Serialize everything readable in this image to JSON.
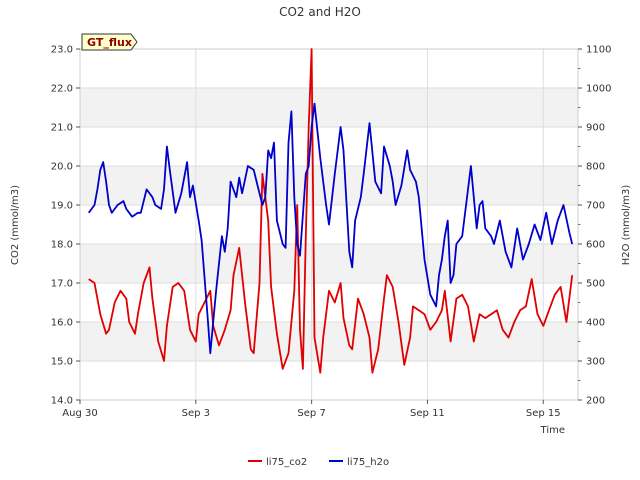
{
  "chart_data": {
    "type": "line",
    "title": "CO2 and H2O",
    "badge": "GT_flux",
    "xlabel": "Time",
    "ylabel_left": "CO2 (mmol/m3)",
    "ylabel_right": "H2O (mmol/m3)",
    "x_range_days": [
      0,
      17.2
    ],
    "x_ticks": [
      {
        "day": 0,
        "label": "Aug 30"
      },
      {
        "day": 4,
        "label": "Sep 3"
      },
      {
        "day": 8,
        "label": "Sep 7"
      },
      {
        "day": 12,
        "label": "Sep 11"
      },
      {
        "day": 16,
        "label": "Sep 15"
      }
    ],
    "ylim_left": [
      14.0,
      23.0
    ],
    "ylim_right": [
      200,
      1100
    ],
    "yticks_left": [
      "14.0",
      "15.0",
      "16.0",
      "17.0",
      "18.0",
      "19.0",
      "20.0",
      "21.0",
      "22.0",
      "23.0"
    ],
    "yticks_right": [
      "200",
      "300",
      "400",
      "500",
      "600",
      "700",
      "800",
      "900",
      "1000",
      "1100"
    ],
    "series": [
      {
        "name": "li75_co2",
        "color": "#e00000",
        "axis": "left",
        "x": [
          0.3,
          0.5,
          0.7,
          0.9,
          1.0,
          1.2,
          1.4,
          1.6,
          1.7,
          1.9,
          2.0,
          2.2,
          2.4,
          2.5,
          2.7,
          2.9,
          3.0,
          3.2,
          3.4,
          3.6,
          3.8,
          4.0,
          4.1,
          4.3,
          4.5,
          4.6,
          4.8,
          5.0,
          5.2,
          5.3,
          5.5,
          5.7,
          5.9,
          6.0,
          6.2,
          6.3,
          6.5,
          6.6,
          6.8,
          7.0,
          7.2,
          7.4,
          7.5,
          7.6,
          7.7,
          7.8,
          7.9,
          8.0,
          8.1,
          8.3,
          8.4,
          8.6,
          8.8,
          9.0,
          9.1,
          9.3,
          9.4,
          9.6,
          9.8,
          10.0,
          10.1,
          10.3,
          10.5,
          10.6,
          10.8,
          11.0,
          11.2,
          11.4,
          11.5,
          11.7,
          11.9,
          12.1,
          12.3,
          12.5,
          12.6,
          12.8,
          13.0,
          13.2,
          13.4,
          13.6,
          13.8,
          14.0,
          14.2,
          14.4,
          14.6,
          14.8,
          15.0,
          15.2,
          15.4,
          15.6,
          15.8,
          16.0,
          16.2,
          16.4,
          16.6,
          16.8,
          17.0
        ],
        "values": [
          17.1,
          17.0,
          16.2,
          15.7,
          15.8,
          16.5,
          16.8,
          16.6,
          16.0,
          15.7,
          16.2,
          17.0,
          17.4,
          16.6,
          15.5,
          15.0,
          15.9,
          16.9,
          17.0,
          16.8,
          15.8,
          15.5,
          16.2,
          16.5,
          16.8,
          15.9,
          15.4,
          15.8,
          16.3,
          17.2,
          17.9,
          16.5,
          15.3,
          15.2,
          17.0,
          19.8,
          18.6,
          16.9,
          15.7,
          14.8,
          15.2,
          16.8,
          19.0,
          15.8,
          14.8,
          18.2,
          21.0,
          23.0,
          15.6,
          14.7,
          15.6,
          16.8,
          16.5,
          17.0,
          16.1,
          15.4,
          15.3,
          16.6,
          16.2,
          15.6,
          14.7,
          15.3,
          16.6,
          17.2,
          16.9,
          16.0,
          14.9,
          15.6,
          16.4,
          16.3,
          16.2,
          15.8,
          16.0,
          16.3,
          16.8,
          15.5,
          16.6,
          16.7,
          16.4,
          15.5,
          16.2,
          16.1,
          16.2,
          16.3,
          15.8,
          15.6,
          16.0,
          16.3,
          16.4,
          17.1,
          16.2,
          15.9,
          16.3,
          16.7,
          16.9,
          16.0,
          17.2
        ]
      },
      {
        "name": "li75_h2o",
        "color": "#0000cc",
        "axis": "right",
        "x": [
          0.3,
          0.4,
          0.5,
          0.6,
          0.7,
          0.8,
          0.9,
          1.0,
          1.1,
          1.2,
          1.3,
          1.5,
          1.6,
          1.8,
          2.0,
          2.1,
          2.3,
          2.5,
          2.6,
          2.8,
          2.9,
          3.0,
          3.1,
          3.3,
          3.5,
          3.7,
          3.8,
          3.9,
          4.1,
          4.2,
          4.4,
          4.5,
          4.7,
          4.9,
          5.0,
          5.1,
          5.2,
          5.4,
          5.5,
          5.6,
          5.8,
          6.0,
          6.1,
          6.3,
          6.4,
          6.5,
          6.6,
          6.7,
          6.8,
          7.0,
          7.1,
          7.2,
          7.3,
          7.4,
          7.5,
          7.6,
          7.8,
          7.9,
          8.0,
          8.1,
          8.3,
          8.5,
          8.6,
          8.8,
          9.0,
          9.1,
          9.3,
          9.4,
          9.5,
          9.7,
          9.8,
          10.0,
          10.2,
          10.4,
          10.5,
          10.7,
          10.8,
          10.9,
          11.1,
          11.3,
          11.4,
          11.6,
          11.7,
          11.9,
          12.1,
          12.3,
          12.4,
          12.5,
          12.6,
          12.7,
          12.8,
          12.9,
          13.0,
          13.2,
          13.3,
          13.5,
          13.6,
          13.7,
          13.8,
          13.9,
          14.0,
          14.2,
          14.3,
          14.5,
          14.7,
          14.9,
          15.1,
          15.3,
          15.5,
          15.7,
          15.9,
          16.1,
          16.3,
          16.5,
          16.7,
          16.9,
          17.0
        ],
        "values": [
          680,
          690,
          700,
          740,
          790,
          810,
          760,
          700,
          680,
          690,
          700,
          710,
          690,
          670,
          680,
          680,
          740,
          720,
          700,
          690,
          740,
          850,
          790,
          680,
          730,
          810,
          720,
          750,
          660,
          610,
          420,
          320,
          480,
          620,
          580,
          640,
          760,
          720,
          770,
          730,
          800,
          790,
          760,
          700,
          720,
          840,
          820,
          860,
          660,
          600,
          590,
          860,
          940,
          720,
          600,
          570,
          780,
          800,
          900,
          960,
          820,
          700,
          650,
          780,
          900,
          840,
          580,
          540,
          660,
          720,
          780,
          910,
          760,
          730,
          850,
          800,
          760,
          700,
          750,
          840,
          790,
          760,
          720,
          560,
          470,
          440,
          520,
          560,
          620,
          660,
          500,
          520,
          600,
          620,
          680,
          800,
          720,
          640,
          700,
          710,
          640,
          620,
          600,
          660,
          580,
          540,
          640,
          560,
          600,
          650,
          610,
          680,
          600,
          660,
          700,
          630,
          600
        ]
      }
    ],
    "legend": [
      "li75_co2",
      "li75_h2o"
    ]
  }
}
